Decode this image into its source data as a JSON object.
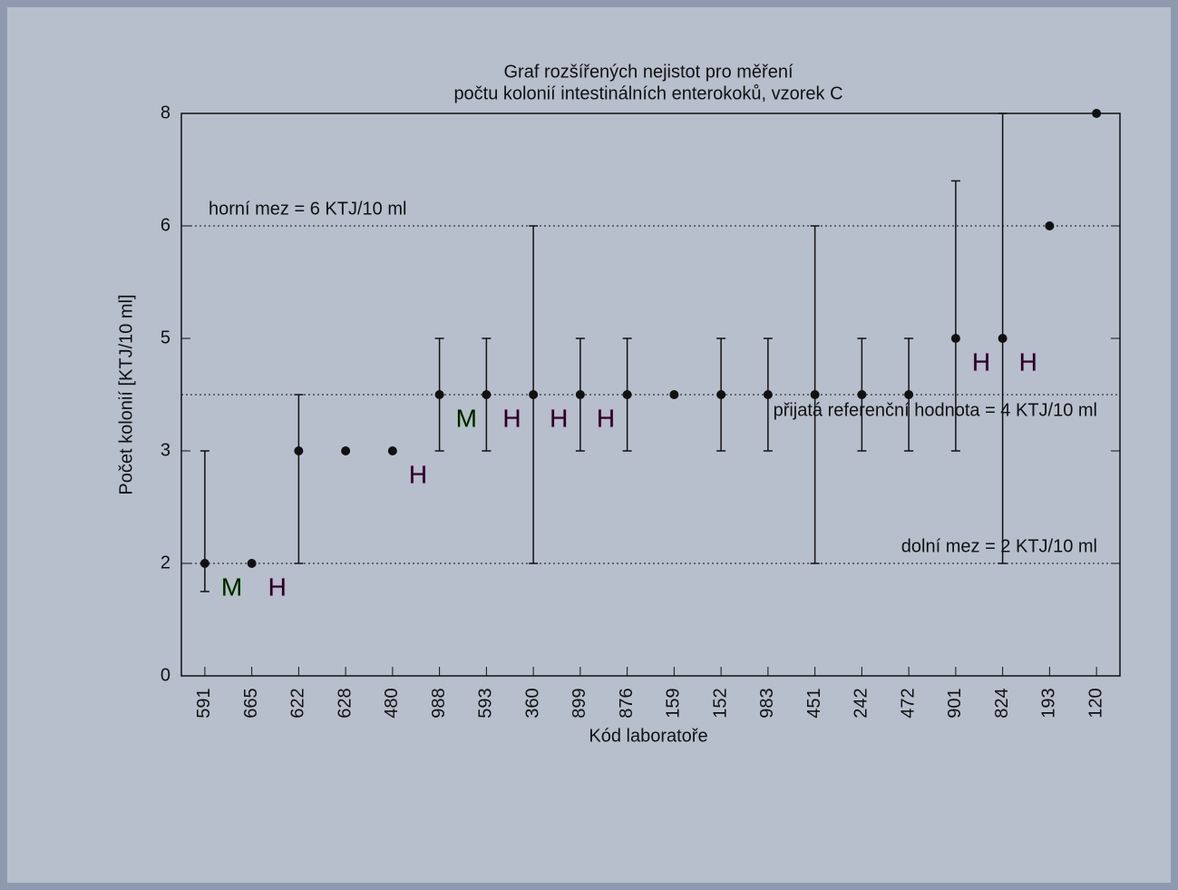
{
  "chart_data": {
    "type": "errorbar",
    "title": [
      "Graf rozšířených nejistot pro měření",
      "počtu kolonií intestinálních enterokoků, vzorek C"
    ],
    "x_label": "Kód laboratoře",
    "y_label": "Počet kolonií [KTJ/10 ml]",
    "categories": [
      "591",
      "665",
      "622",
      "628",
      "480",
      "988",
      "593",
      "360",
      "899",
      "876",
      "159",
      "152",
      "983",
      "451",
      "242",
      "472",
      "901",
      "824",
      "193",
      "120"
    ],
    "values": [
      2,
      2,
      3,
      3,
      3,
      4,
      4,
      4,
      4,
      4,
      4,
      4,
      4,
      4,
      4,
      4,
      5,
      5,
      6,
      8
    ],
    "lower": [
      1.5,
      null,
      2,
      null,
      null,
      3,
      3,
      2,
      3,
      3,
      null,
      3,
      3,
      2,
      3,
      3,
      3,
      2,
      null,
      null
    ],
    "upper": [
      3,
      null,
      4,
      null,
      null,
      5,
      5,
      6,
      5,
      5,
      null,
      5,
      5,
      6,
      5,
      5,
      6.8,
      8,
      null,
      null
    ],
    "color": "#111111",
    "flags": [
      "M",
      "H",
      null,
      null,
      "H",
      "M",
      "H",
      "H",
      "H",
      null,
      null,
      null,
      null,
      null,
      null,
      null,
      "H",
      "H",
      null,
      null
    ],
    "flag_colors": {
      "M": "#7fe07f",
      "H": "#e67ae6"
    },
    "ylim": [
      0,
      8
    ],
    "yticks": [
      0,
      2,
      3,
      5,
      6,
      8
    ],
    "y_scale": "piecewise-ticks",
    "reference_lines": [
      {
        "value": 6,
        "label": "horní mez = 6 KTJ/10 ml",
        "anchor": "start"
      },
      {
        "value": 4,
        "label": "přijatá referenční hodnota = 4 KTJ/10 ml",
        "anchor": "end"
      },
      {
        "value": 2,
        "label": "dolní mez = 2 KTJ/10 ml",
        "anchor": "end"
      }
    ]
  }
}
